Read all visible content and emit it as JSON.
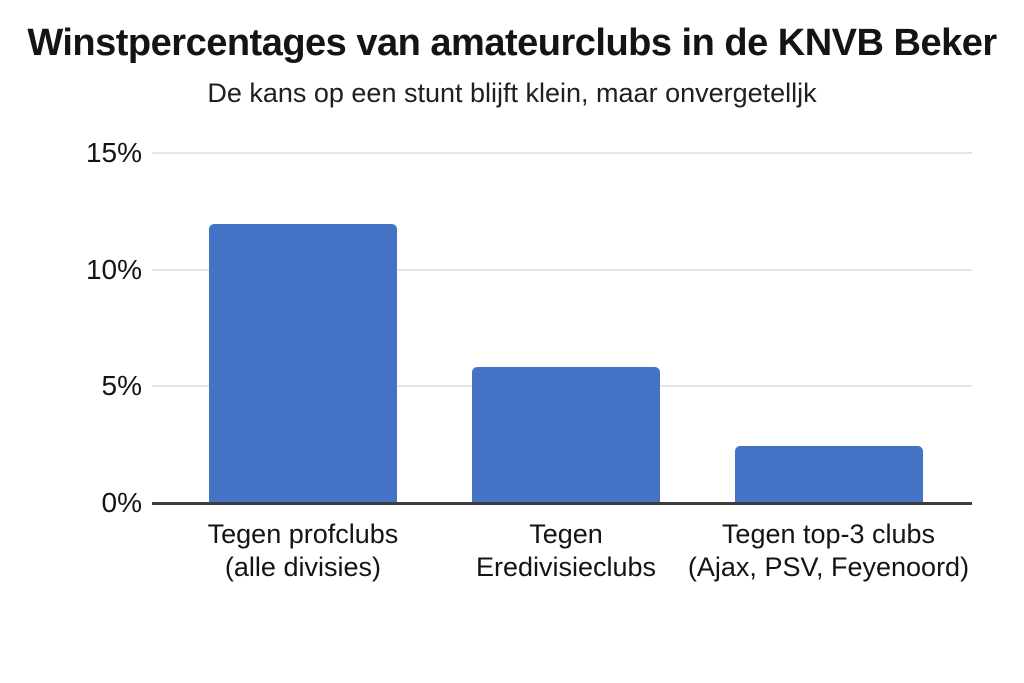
{
  "page": {
    "background": "#ffffff"
  },
  "chart_data": {
    "type": "bar",
    "title": "Winstpercentages van amateurclubs in de KNVB Beker",
    "subtitle": "De kans op een stunt blijft klein, maar onvergetelljk",
    "categories": [
      {
        "line1": "Tegen profclubs",
        "line2": "(alle divisies)"
      },
      {
        "line1": "Tegen",
        "line2": "Eredivisieclubs"
      },
      {
        "line1": "Tegen top-3 clubs",
        "line2": "(Ajax, PSV, Feyenoord)"
      }
    ],
    "values": [
      11.9,
      5.8,
      2.4
    ],
    "unit": "%",
    "xlabel": "",
    "ylabel": "",
    "ylim": [
      0,
      15
    ],
    "yticks": [
      {
        "value": 0,
        "label": "0%"
      },
      {
        "value": 5,
        "label": "5%"
      },
      {
        "value": 10,
        "label": "10%"
      },
      {
        "value": 15,
        "label": "15%"
      }
    ],
    "grid": true,
    "legend_position": "none",
    "colors": {
      "bar": "#4472c4",
      "gridline": "#e5e5e5",
      "axis_line": "#3d3d3d",
      "text": "#141414"
    }
  }
}
